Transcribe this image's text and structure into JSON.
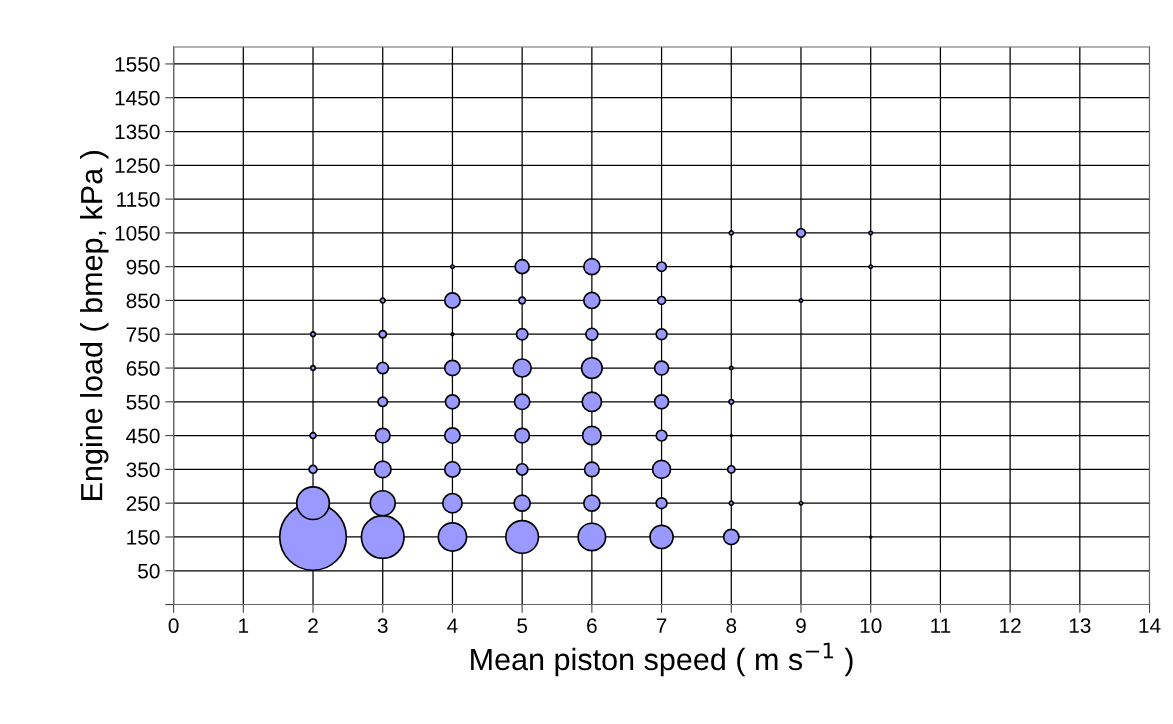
{
  "chart_data": {
    "type": "bubble",
    "xlabel": "Mean piston speed ( m s$^{−1}$ )",
    "ylabel": "Engine load ( bmep, kPa )",
    "series": [
      {
        "color": "#9999ff",
        "x": [
          2,
          2,
          2,
          2,
          2,
          2,
          3,
          3,
          3,
          3,
          3,
          3,
          3,
          3,
          4,
          4,
          4,
          4,
          4,
          4,
          4,
          4,
          4,
          5,
          5,
          5,
          5,
          5,
          5,
          5,
          5,
          5,
          6,
          6,
          6,
          6,
          6,
          6,
          6,
          6,
          6,
          7,
          7,
          7,
          7,
          7,
          7,
          7,
          7,
          7,
          8,
          8,
          8,
          8,
          8,
          8,
          8,
          8,
          9,
          9,
          9,
          10,
          10,
          10
        ],
        "values": [
          150,
          250,
          350,
          450,
          650,
          750,
          150,
          250,
          350,
          450,
          550,
          650,
          750,
          850,
          150,
          250,
          350,
          450,
          550,
          650,
          750,
          850,
          950,
          150,
          250,
          350,
          450,
          550,
          650,
          750,
          850,
          950,
          150,
          250,
          350,
          450,
          550,
          650,
          750,
          850,
          950,
          150,
          250,
          350,
          450,
          550,
          650,
          750,
          850,
          950,
          150,
          250,
          350,
          450,
          550,
          650,
          950,
          1050,
          250,
          850,
          1050,
          150,
          950,
          1050
        ],
        "sizes": [
          1,
          0.24,
          0.014,
          0.008,
          0.005,
          0.005,
          0.41,
          0.14,
          0.062,
          0.048,
          0.02,
          0.029,
          0.012,
          0.005,
          0.18,
          0.084,
          0.053,
          0.053,
          0.044,
          0.053,
          0.0016,
          0.053,
          0.0025,
          0.24,
          0.058,
          0.029,
          0.048,
          0.053,
          0.073,
          0.029,
          0.01,
          0.044,
          0.17,
          0.058,
          0.048,
          0.078,
          0.084,
          0.096,
          0.032,
          0.058,
          0.058,
          0.12,
          0.026,
          0.073,
          0.026,
          0.044,
          0.044,
          0.026,
          0.014,
          0.02,
          0.053,
          0.0036,
          0.012,
          0.0006,
          0.0049,
          0.0025,
          0.0006,
          0.0036,
          0.0025,
          0.0025,
          0.017,
          0.0009,
          0.0025,
          0.0025
        ]
      }
    ],
    "xlim": [
      0,
      14
    ],
    "xticks": [
      0,
      1,
      2,
      3,
      4,
      5,
      6,
      7,
      8,
      9,
      10,
      11,
      12,
      13,
      14
    ],
    "ylim": [
      -50,
      1600
    ],
    "yticks": [
      {
        "value": -50,
        "label": null
      },
      50,
      150,
      250,
      350,
      450,
      550,
      650,
      750,
      850,
      950,
      1050,
      1150,
      1250,
      1350,
      1450,
      1550
    ],
    "grid": true
  }
}
